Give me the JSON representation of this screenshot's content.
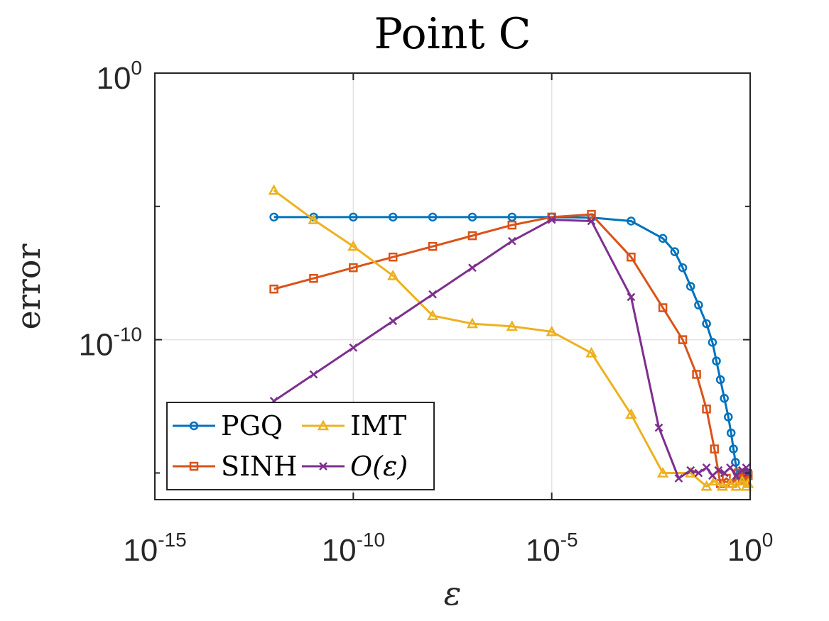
{
  "chart_data": {
    "type": "line",
    "title": "Point C",
    "xlabel": "ε",
    "ylabel": "error",
    "xscale": "log",
    "yscale": "log",
    "xlim_exp": [
      -15,
      0
    ],
    "ylim_exp": [
      -16,
      0
    ],
    "x_ticks": [
      {
        "base": "10",
        "exp": "-15"
      },
      {
        "base": "10",
        "exp": "-10"
      },
      {
        "base": "10",
        "exp": "-5"
      },
      {
        "base": "10",
        "exp": "0"
      }
    ],
    "y_ticks": [
      {
        "base": "10",
        "exp": "0"
      },
      {
        "base": "10",
        "exp": "-10"
      }
    ],
    "grid": true,
    "legend": {
      "location": "bottom-left",
      "columns": 2,
      "entries": [
        "PGQ",
        "IMT",
        "SINH",
        "O(ε)"
      ]
    },
    "series": [
      {
        "name": "PGQ",
        "color": "#0072BD",
        "marker": "circle",
        "x_exp": [
          -12,
          -11,
          -10,
          -9,
          -8,
          -7,
          -6,
          -5,
          -4,
          -3,
          -2.2,
          -1.9,
          -1.7,
          -1.5,
          -1.3,
          -1.1,
          -0.95,
          -0.85,
          -0.75,
          -0.65,
          -0.55,
          -0.48,
          -0.42,
          -0.37,
          -0.32,
          -0.28,
          -0.24,
          -0.2,
          -0.17,
          -0.14,
          -0.11,
          -0.08,
          -0.05
        ],
        "y_exp": [
          -5.4,
          -5.4,
          -5.4,
          -5.4,
          -5.4,
          -5.4,
          -5.4,
          -5.4,
          -5.42,
          -5.55,
          -6.2,
          -6.7,
          -7.3,
          -8,
          -8.7,
          -9.4,
          -10.1,
          -10.8,
          -11.5,
          -12.2,
          -12.9,
          -13.5,
          -14.1,
          -14.6,
          -15,
          -15.1,
          -15.05,
          -15.15,
          -15.0,
          -15.1,
          -15.05,
          -15.1,
          -15.0
        ]
      },
      {
        "name": "SINH",
        "color": "#D95319",
        "marker": "square",
        "x_exp": [
          -12,
          -11,
          -10,
          -9,
          -8,
          -7,
          -6,
          -5,
          -4,
          -3,
          -2.2,
          -1.7,
          -1.35,
          -1.1,
          -0.9,
          -0.75,
          -0.6,
          -0.45,
          -0.3,
          -0.2,
          -0.12,
          -0.05
        ],
        "y_exp": [
          -8.1,
          -7.7,
          -7.3,
          -6.9,
          -6.5,
          -6.1,
          -5.7,
          -5.4,
          -5.3,
          -6.9,
          -8.8,
          -10,
          -11.3,
          -12.6,
          -14.1,
          -15.4,
          -15.2,
          -15.4,
          -15.0,
          -15.2,
          -15.3,
          -15.1
        ]
      },
      {
        "name": "IMT",
        "color": "#EDB120",
        "marker": "triangle",
        "x_exp": [
          -12,
          -11,
          -10,
          -9,
          -8,
          -7,
          -6,
          -5,
          -4,
          -3,
          -2.2,
          -1.5,
          -1.1,
          -0.9,
          -0.7,
          -0.5,
          -0.35,
          -0.2,
          -0.1,
          -0.05
        ],
        "y_exp": [
          -4.4,
          -5.5,
          -6.5,
          -7.6,
          -9.1,
          -9.4,
          -9.5,
          -9.7,
          -10.5,
          -12.8,
          -15.0,
          -15.0,
          -15.5,
          -15.3,
          -15.5,
          -15.4,
          -15.5,
          -15.3,
          -15.5,
          -15.4
        ]
      },
      {
        "name": "O(ε)",
        "color": "#7E2F8E",
        "marker": "x",
        "x_exp": [
          -12,
          -11,
          -10,
          -9,
          -8,
          -7,
          -6,
          -5,
          -4,
          -3,
          -2.3,
          -1.8,
          -1.5,
          -1.3,
          -1.1,
          -0.95,
          -0.8,
          -0.65,
          -0.5,
          -0.35,
          -0.2,
          -0.1,
          -0.05
        ],
        "y_exp": [
          -12.3,
          -11.3,
          -10.3,
          -9.3,
          -8.3,
          -7.3,
          -6.3,
          -5.5,
          -5.55,
          -8.4,
          -13.3,
          -15.2,
          -14.9,
          -15.0,
          -14.8,
          -15.1,
          -14.9,
          -15.0,
          -14.8,
          -15.1,
          -14.9,
          -14.8,
          -15.0
        ]
      }
    ]
  }
}
